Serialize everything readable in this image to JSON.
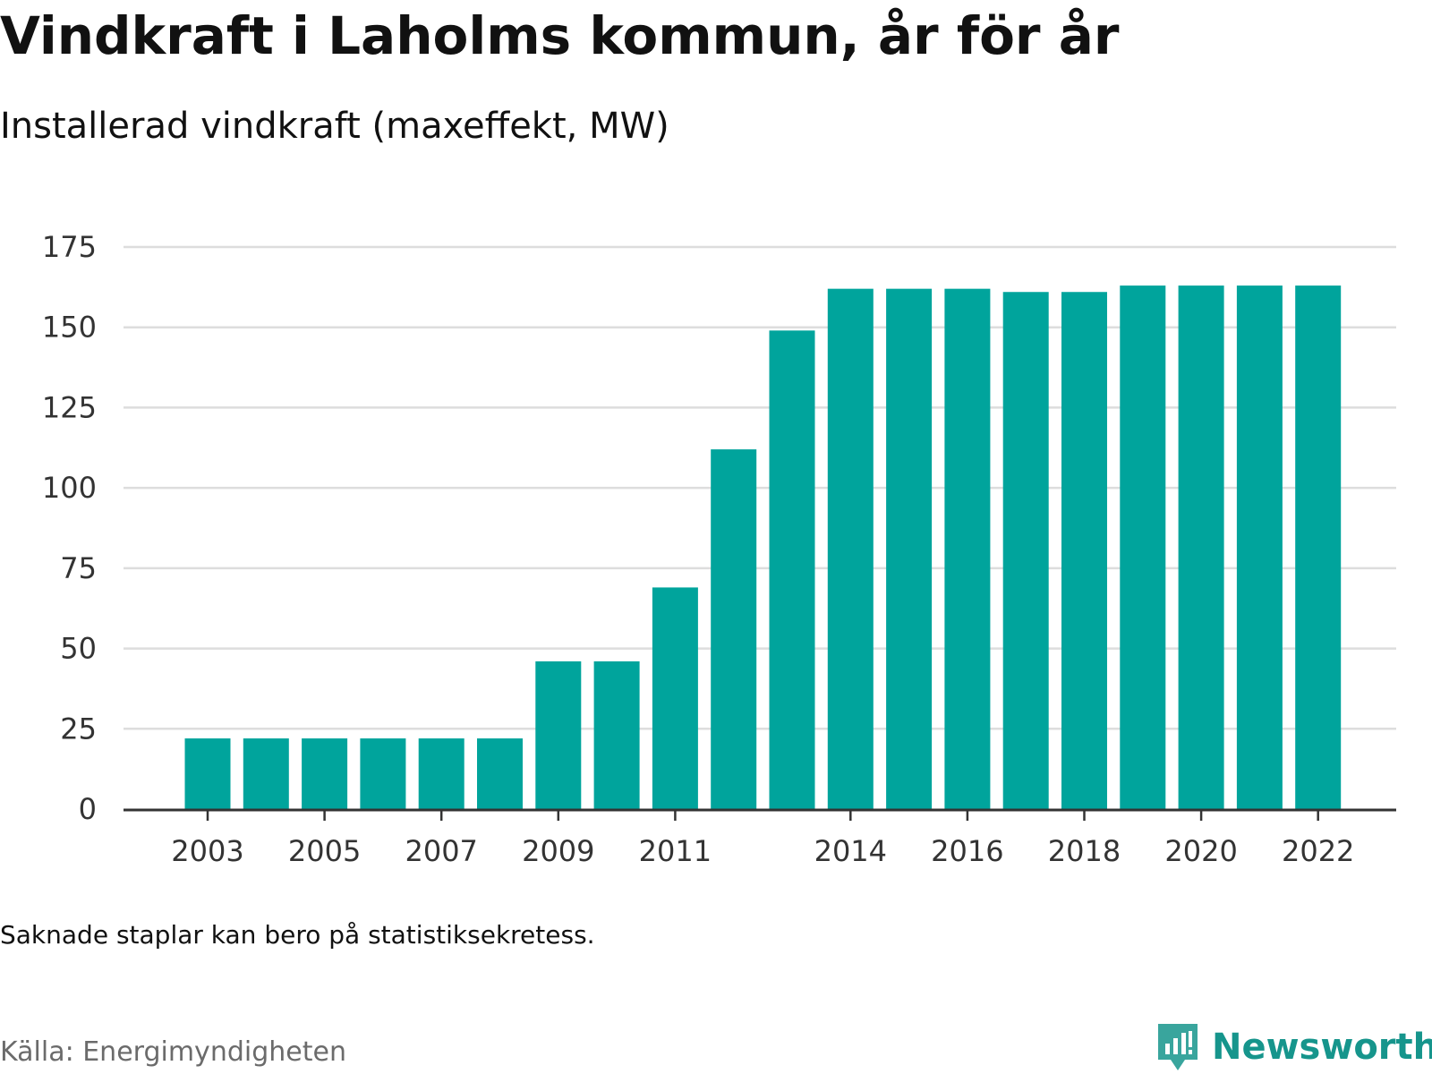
{
  "header": {
    "title": "Vindkraft i Laholms kommun, år för år",
    "subtitle": "Installerad vindkraft (maxeffekt, MW)"
  },
  "footer": {
    "note": "Saknade staplar kan bero på statistiksekretess.",
    "source": "Källa: Energimyndigheten",
    "brand": "Newsworthy"
  },
  "colors": {
    "bar": "#00a49c",
    "grid": "#dddddd",
    "axis": "#333333",
    "brand": "#16958c"
  },
  "chart_data": {
    "type": "bar",
    "title": "Vindkraft i Laholms kommun, år för år",
    "subtitle": "Installerad vindkraft (maxeffekt, MW)",
    "categories": [
      "2003",
      "2004",
      "2005",
      "2006",
      "2007",
      "2008",
      "2009",
      "2010",
      "2011",
      "2012",
      "2013",
      "2014",
      "2015",
      "2016",
      "2017",
      "2018",
      "2019",
      "2020",
      "2021",
      "2022"
    ],
    "values": [
      22,
      22,
      22,
      22,
      22,
      22,
      46,
      46,
      69,
      112,
      149,
      162,
      162,
      162,
      161,
      161,
      163,
      163,
      163,
      163
    ],
    "x_tick_labels": [
      "2003",
      "2005",
      "2007",
      "2009",
      "2011",
      "2014",
      "2016",
      "2018",
      "2020",
      "2022"
    ],
    "y_ticks": [
      0,
      25,
      50,
      75,
      100,
      125,
      150,
      175
    ],
    "ylim": [
      0,
      175
    ],
    "grid": true,
    "xlabel": "",
    "ylabel": ""
  }
}
